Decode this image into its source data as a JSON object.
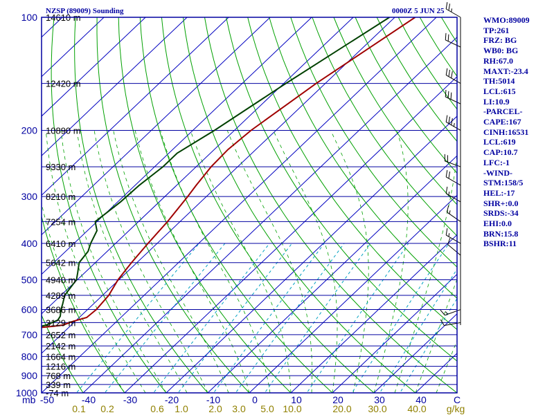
{
  "header": {
    "station": "NZSP (89009) Sounding",
    "time": "0000Z  5 JUN 25"
  },
  "chart_data": {
    "type": "skew-t",
    "pressure_axis": {
      "unit": "mb",
      "range": [
        1000,
        100
      ],
      "tick_labels": [
        "100",
        "200",
        "300",
        "400",
        "500",
        "600",
        "700",
        "800",
        "900",
        "1000"
      ],
      "unit_label": "mb"
    },
    "temperature_axis": {
      "unit": "C",
      "range": [
        -50,
        50
      ],
      "tick_labels": [
        "-50",
        "-40",
        "-30",
        "-20",
        "-10",
        "0",
        "10",
        "20",
        "30",
        "40"
      ],
      "unit_label": "C"
    },
    "mixing_ratio_axis": {
      "unit_label": "g/kg",
      "labels": [
        "0.1",
        "0.2",
        "0.6",
        "1.0",
        "2.0",
        "3.0",
        "5.0",
        "10.0",
        "20.0",
        "30.0",
        "40.0"
      ]
    },
    "heights": [
      {
        "p": 100,
        "label": "14610 m"
      },
      {
        "p": 150,
        "label": "12420 m"
      },
      {
        "p": 200,
        "label": "10890 m"
      },
      {
        "p": 250,
        "label": "9330 m"
      },
      {
        "p": 300,
        "label": "8210 m"
      },
      {
        "p": 350,
        "label": "7254 m"
      },
      {
        "p": 400,
        "label": "6410 m"
      },
      {
        "p": 450,
        "label": "5642 m"
      },
      {
        "p": 500,
        "label": "4940 m"
      },
      {
        "p": 550,
        "label": "4289 m"
      },
      {
        "p": 600,
        "label": "3686 m"
      },
      {
        "p": 650,
        "label": "3129 m"
      },
      {
        "p": 700,
        "label": "2652 m"
      },
      {
        "p": 750,
        "label": "2142 m"
      },
      {
        "p": 800,
        "label": "1664 m"
      },
      {
        "p": 850,
        "label": "1216 m"
      },
      {
        "p": 900,
        "label": "768 m"
      },
      {
        "p": 950,
        "label": "339 m"
      },
      {
        "p": 1000,
        "label": "-74 m"
      }
    ],
    "series": [
      {
        "name": "Temperature",
        "color": "#a00000",
        "points": [
          [
            100,
            -55.1
          ],
          [
            125,
            -59.0
          ],
          [
            150,
            -62.2
          ],
          [
            200,
            -66.0
          ],
          [
            225,
            -66.7
          ],
          [
            250,
            -66.4
          ],
          [
            280,
            -65.3
          ],
          [
            300,
            -64.5
          ],
          [
            350,
            -63.0
          ],
          [
            400,
            -62.2
          ],
          [
            450,
            -61.3
          ],
          [
            500,
            -60.2
          ],
          [
            550,
            -58.5
          ],
          [
            600,
            -57.9
          ],
          [
            630,
            -58.2
          ],
          [
            645,
            -60.5
          ],
          [
            660,
            -62.0
          ],
          [
            665,
            -64.0
          ],
          [
            670,
            -67.0
          ]
        ]
      },
      {
        "name": "Dew point",
        "color": "#004000",
        "points": [
          [
            100,
            -61.3
          ],
          [
            150,
            -69.5
          ],
          [
            200,
            -74.8
          ],
          [
            230,
            -78.0
          ],
          [
            250,
            -78.0
          ],
          [
            280,
            -79.0
          ],
          [
            310,
            -79.3
          ],
          [
            350,
            -80.4
          ],
          [
            370,
            -77.7
          ],
          [
            400,
            -76.0
          ],
          [
            420,
            -74.6
          ],
          [
            450,
            -73.9
          ],
          [
            480,
            -71.6
          ],
          [
            500,
            -70.2
          ],
          [
            550,
            -69.1
          ],
          [
            580,
            -67.4
          ],
          [
            600,
            -66.4
          ],
          [
            625,
            -64.9
          ],
          [
            640,
            -64.5
          ],
          [
            660,
            -66.0
          ],
          [
            670,
            -68.0
          ]
        ]
      }
    ],
    "wind_barbs": [
      {
        "p": 100,
        "dir": 300,
        "speed": 25
      },
      {
        "p": 120,
        "dir": 295,
        "speed": 20
      },
      {
        "p": 150,
        "dir": 300,
        "speed": 30
      },
      {
        "p": 170,
        "dir": 295,
        "speed": 30
      },
      {
        "p": 200,
        "dir": 300,
        "speed": 35
      },
      {
        "p": 250,
        "dir": 290,
        "speed": 20
      },
      {
        "p": 280,
        "dir": 300,
        "speed": 20
      },
      {
        "p": 310,
        "dir": 300,
        "speed": 15
      },
      {
        "p": 350,
        "dir": 305,
        "speed": 15
      },
      {
        "p": 400,
        "dir": 300,
        "speed": 15
      },
      {
        "p": 430,
        "dir": 310,
        "speed": 10
      },
      {
        "p": 600,
        "dir": 250,
        "speed": 15
      },
      {
        "p": 650,
        "dir": 260,
        "speed": 10
      }
    ],
    "grid": true
  },
  "stats": [
    "WMO:89009",
    "TP:261",
    "FRZ: BG",
    "WB0: BG",
    "RH:67.0",
    "MAXT:-23.4",
    "TH:5014",
    "LCL:615",
    "LI:10.9",
    "-PARCEL-",
    "CAPE:167",
    "CINH:16531",
    "LCL:619",
    "CAP:10.7",
    "LFC:-1",
    "-WIND-",
    "STM:158/5",
    "HEL:-17",
    "SHR+:0.0",
    "SRDS:-34",
    "EHI:0.0",
    "BRN:15.8",
    "BSHR:11"
  ],
  "colors": {
    "isobar": "#0000a0",
    "isotherm": "#0000c0",
    "dry_adiabat": "#00a000",
    "moist_adiabat": "#00a000",
    "mixing_ratio": "#00a0c0",
    "frame": "#0000a0",
    "parcel": "#0000a0"
  }
}
